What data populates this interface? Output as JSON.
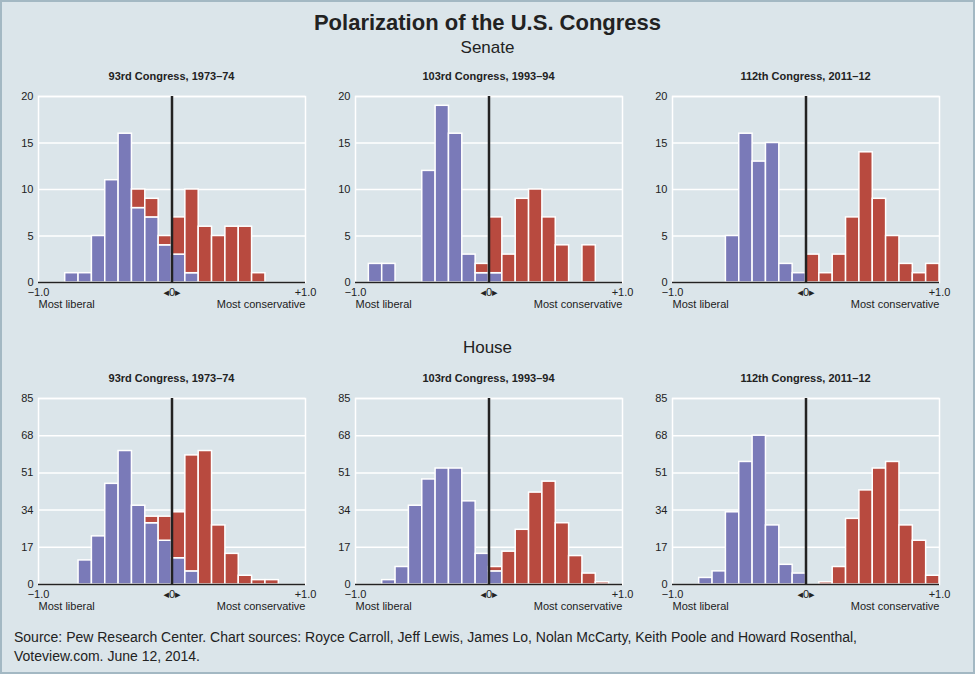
{
  "title": "Polarization of the U.S. Congress",
  "source": "Source: Pew Research Center. Chart sources: Royce Carroll, Jeff Lewis, James Lo, Nolan McCarty, Keith Poole and Howard Rosenthal, Voteview.com. June 12, 2014.",
  "chart_data": [
    {
      "type": "histogram",
      "subtitle": "Senate",
      "title": "93rd Congress, 1973–74",
      "stacked": true,
      "grid": true,
      "bins": [
        -1.0,
        -0.9,
        -0.8,
        -0.7,
        -0.6,
        -0.5,
        -0.4,
        -0.3,
        -0.2,
        -0.1,
        0.0,
        0.1,
        0.2,
        0.3,
        0.4,
        0.5,
        0.6,
        0.7,
        0.8,
        0.9,
        1.0
      ],
      "series": [
        {
          "color": "#7a7ab8",
          "values": [
            0,
            0,
            1,
            1,
            5,
            11,
            16,
            8,
            7,
            4,
            3,
            1,
            0,
            0,
            0,
            0,
            0,
            0,
            0,
            0
          ]
        },
        {
          "color": "#b84a3f",
          "values": [
            0,
            0,
            0,
            0,
            0,
            0,
            0,
            2,
            2,
            1,
            4,
            9,
            6,
            5,
            6,
            6,
            1,
            0,
            0,
            0
          ]
        }
      ],
      "xlim": [
        -1.0,
        1.0
      ],
      "xticks": [
        {
          "value": -1.0,
          "label": "−1.0"
        },
        {
          "value": 0,
          "label": "◂0▸"
        },
        {
          "value": 1.0,
          "label": "+1.0"
        }
      ],
      "ylim": [
        0,
        20
      ],
      "yticks": [
        0,
        5,
        10,
        15,
        20
      ],
      "annotations": [
        "Most liberal",
        "Most conservative"
      ]
    },
    {
      "type": "histogram",
      "subtitle": "Senate",
      "title": "103rd Congress, 1993–94",
      "stacked": true,
      "grid": true,
      "bins": [
        -1.0,
        -0.9,
        -0.8,
        -0.7,
        -0.6,
        -0.5,
        -0.4,
        -0.3,
        -0.2,
        -0.1,
        0.0,
        0.1,
        0.2,
        0.3,
        0.4,
        0.5,
        0.6,
        0.7,
        0.8,
        0.9,
        1.0
      ],
      "series": [
        {
          "color": "#7a7ab8",
          "values": [
            0,
            2,
            2,
            0,
            0,
            12,
            19,
            16,
            3,
            1,
            1,
            0,
            0,
            0,
            0,
            0,
            0,
            0,
            0,
            0
          ]
        },
        {
          "color": "#b84a3f",
          "values": [
            0,
            0,
            0,
            0,
            0,
            0,
            0,
            0,
            0,
            1,
            6,
            3,
            9,
            10,
            7,
            4,
            0,
            4,
            0,
            0
          ]
        }
      ],
      "xlim": [
        -1.0,
        1.0
      ],
      "xticks": [
        {
          "value": -1.0,
          "label": "−1.0"
        },
        {
          "value": 0,
          "label": "◂0▸"
        },
        {
          "value": 1.0,
          "label": "+1.0"
        }
      ],
      "ylim": [
        0,
        20
      ],
      "yticks": [
        0,
        5,
        10,
        15,
        20
      ],
      "annotations": [
        "Most liberal",
        "Most conservative"
      ]
    },
    {
      "type": "histogram",
      "subtitle": "Senate",
      "title": "112th Congress, 2011–12",
      "stacked": true,
      "grid": true,
      "bins": [
        -1.0,
        -0.9,
        -0.8,
        -0.7,
        -0.6,
        -0.5,
        -0.4,
        -0.3,
        -0.2,
        -0.1,
        0.0,
        0.1,
        0.2,
        0.3,
        0.4,
        0.5,
        0.6,
        0.7,
        0.8,
        0.9,
        1.0
      ],
      "series": [
        {
          "color": "#7a7ab8",
          "values": [
            0,
            0,
            0,
            0,
            5,
            16,
            13,
            15,
            2,
            1,
            0,
            0,
            0,
            0,
            0,
            0,
            0,
            0,
            0,
            0
          ]
        },
        {
          "color": "#b84a3f",
          "values": [
            0,
            0,
            0,
            0,
            0,
            0,
            0,
            0,
            0,
            0,
            3,
            1,
            3,
            7,
            14,
            9,
            5,
            2,
            1,
            2
          ]
        }
      ],
      "xlim": [
        -1.0,
        1.0
      ],
      "xticks": [
        {
          "value": -1.0,
          "label": "−1.0"
        },
        {
          "value": 0,
          "label": "◂0▸"
        },
        {
          "value": 1.0,
          "label": "+1.0"
        }
      ],
      "ylim": [
        0,
        20
      ],
      "yticks": [
        0,
        5,
        10,
        15,
        20
      ],
      "annotations": [
        "Most liberal",
        "Most conservative"
      ]
    },
    {
      "type": "histogram",
      "subtitle": "House",
      "title": "93rd Congress, 1973–74",
      "stacked": true,
      "grid": true,
      "bins": [
        -1.0,
        -0.9,
        -0.8,
        -0.7,
        -0.6,
        -0.5,
        -0.4,
        -0.3,
        -0.2,
        -0.1,
        0.0,
        0.1,
        0.2,
        0.3,
        0.4,
        0.5,
        0.6,
        0.7,
        0.8,
        0.9,
        1.0
      ],
      "series": [
        {
          "color": "#7a7ab8",
          "values": [
            0,
            0,
            0,
            11,
            22,
            46,
            61,
            36,
            28,
            20,
            12,
            6,
            0,
            0,
            0,
            0,
            0,
            0,
            0,
            0
          ]
        },
        {
          "color": "#b84a3f",
          "values": [
            0,
            0,
            0,
            0,
            0,
            0,
            0,
            0,
            3,
            11,
            21,
            53,
            61,
            27,
            14,
            4,
            2,
            2,
            0,
            0
          ]
        }
      ],
      "xlim": [
        -1.0,
        1.0
      ],
      "xticks": [
        {
          "value": -1.0,
          "label": "−1.0"
        },
        {
          "value": 0,
          "label": "◂0▸"
        },
        {
          "value": 1.0,
          "label": "+1.0"
        }
      ],
      "ylim": [
        0,
        85
      ],
      "yticks": [
        0,
        17,
        34,
        51,
        68,
        85
      ],
      "annotations": [
        "Most liberal",
        "Most conservative"
      ]
    },
    {
      "type": "histogram",
      "subtitle": "House",
      "title": "103rd Congress, 1993–94",
      "stacked": true,
      "grid": true,
      "bins": [
        -1.0,
        -0.9,
        -0.8,
        -0.7,
        -0.6,
        -0.5,
        -0.4,
        -0.3,
        -0.2,
        -0.1,
        0.0,
        0.1,
        0.2,
        0.3,
        0.4,
        0.5,
        0.6,
        0.7,
        0.8,
        0.9,
        1.0
      ],
      "series": [
        {
          "color": "#7a7ab8",
          "values": [
            0,
            0,
            2,
            8,
            36,
            48,
            53,
            53,
            38,
            14,
            6,
            0,
            0,
            0,
            0,
            0,
            0,
            0,
            0,
            0
          ]
        },
        {
          "color": "#b84a3f",
          "values": [
            0,
            0,
            0,
            0,
            0,
            0,
            0,
            0,
            0,
            0,
            2,
            15,
            25,
            42,
            47,
            28,
            13,
            5,
            1,
            0
          ]
        }
      ],
      "xlim": [
        -1.0,
        1.0
      ],
      "xticks": [
        {
          "value": -1.0,
          "label": "−1.0"
        },
        {
          "value": 0,
          "label": "◂0▸"
        },
        {
          "value": 1.0,
          "label": "+1.0"
        }
      ],
      "ylim": [
        0,
        85
      ],
      "yticks": [
        0,
        17,
        34,
        51,
        68,
        85
      ],
      "annotations": [
        "Most liberal",
        "Most conservative"
      ]
    },
    {
      "type": "histogram",
      "subtitle": "House",
      "title": "112th Congress, 2011–12",
      "stacked": true,
      "grid": true,
      "bins": [
        -1.0,
        -0.9,
        -0.8,
        -0.7,
        -0.6,
        -0.5,
        -0.4,
        -0.3,
        -0.2,
        -0.1,
        0.0,
        0.1,
        0.2,
        0.3,
        0.4,
        0.5,
        0.6,
        0.7,
        0.8,
        0.9,
        1.0
      ],
      "series": [
        {
          "color": "#7a7ab8",
          "values": [
            0,
            0,
            3,
            6,
            33,
            56,
            68,
            27,
            9,
            5,
            0,
            0,
            0,
            0,
            0,
            0,
            0,
            0,
            0,
            0
          ]
        },
        {
          "color": "#b84a3f",
          "values": [
            0,
            0,
            0,
            0,
            0,
            0,
            0,
            0,
            0,
            0,
            0,
            1,
            8,
            30,
            43,
            53,
            56,
            27,
            20,
            4
          ]
        }
      ],
      "xlim": [
        -1.0,
        1.0
      ],
      "xticks": [
        {
          "value": -1.0,
          "label": "−1.0"
        },
        {
          "value": 0,
          "label": "◂0▸"
        },
        {
          "value": 1.0,
          "label": "+1.0"
        }
      ],
      "ylim": [
        0,
        85
      ],
      "yticks": [
        0,
        17,
        34,
        51,
        68,
        85
      ],
      "annotations": [
        "Most liberal",
        "Most conservative"
      ]
    }
  ]
}
